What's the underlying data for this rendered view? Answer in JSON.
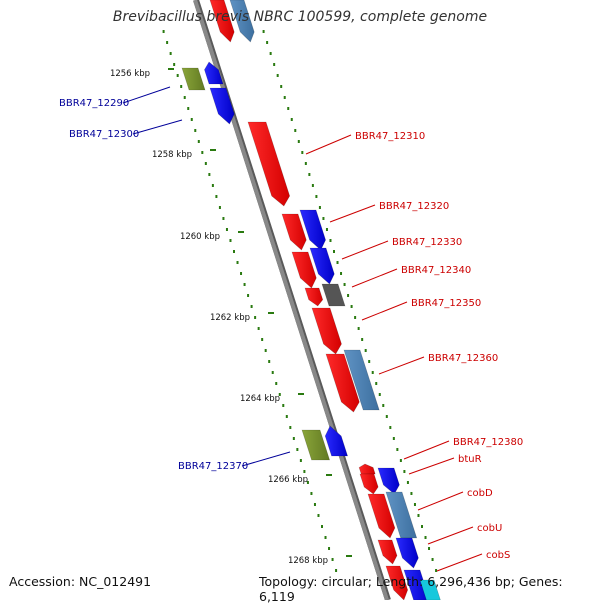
{
  "title": "Brevibacillus brevis NBRC 100599, complete genome",
  "footer": {
    "accession": "Accession: NC_012491",
    "summary": "Topology: circular; Length: 6,296,436 bp; Genes: 6,119"
  },
  "colors": {
    "background": "#ffffff",
    "backbone": "#888888",
    "forward_label": "#cc0000",
    "reverse_label": "#000099",
    "tick_dots": "#2a7a10"
  },
  "ticks": [
    "1256 kbp",
    "1258 kbp",
    "1260 kbp",
    "1262 kbp",
    "1264 kbp",
    "1266 kbp",
    "1268 kbp"
  ],
  "labels": {
    "left": [
      "BBR47_12290",
      "BBR47_12300",
      "BBR47_12370"
    ],
    "right": [
      "BBR47_12310",
      "BBR47_12320",
      "BBR47_12330",
      "BBR47_12340",
      "BBR47_12350",
      "BBR47_12360",
      "BBR47_12380",
      "btuR",
      "cobD",
      "cobU",
      "cobS"
    ]
  }
}
